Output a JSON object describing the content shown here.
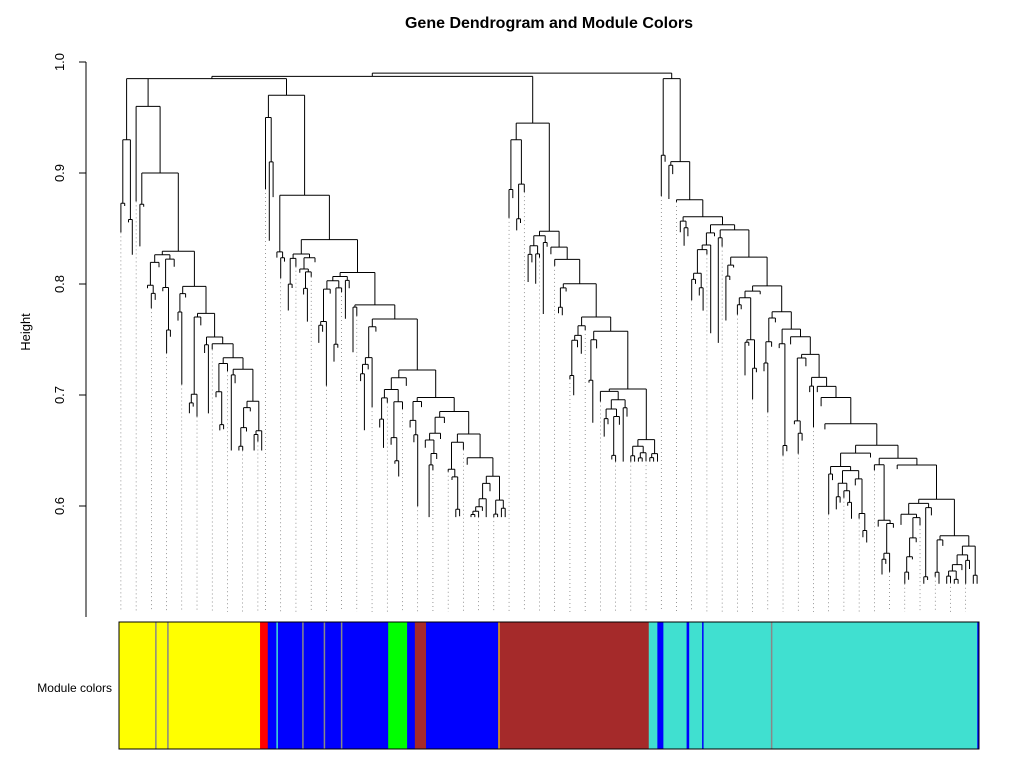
{
  "chart_data": {
    "type": "dendrogram",
    "title": "Gene Dendrogram and Module Colors",
    "ylabel": "Height",
    "ylim": [
      0.5,
      1.0
    ],
    "yticks": [
      0.6,
      0.7,
      0.8,
      0.9,
      1.0
    ],
    "color_row_label": "Module colors",
    "top_merge_height": 0.99,
    "clusters": [
      {
        "name": "yellow",
        "top": 0.99,
        "tip_min": 0.65,
        "n_bins": 38,
        "sub": [
          0.985,
          0.96,
          0.93,
          0.9
        ]
      },
      {
        "name": "blue",
        "top": 0.975,
        "tip_min": 0.59,
        "n_bins": 64,
        "sub": [
          0.97,
          0.95,
          0.91,
          0.88,
          0.84
        ]
      },
      {
        "name": "brown",
        "top": 0.97,
        "tip_min": 0.64,
        "n_bins": 40,
        "sub": [
          0.945,
          0.93,
          0.89,
          0.87
        ]
      },
      {
        "name": "turquoise",
        "top": 0.99,
        "tip_min": 0.53,
        "n_bins": 84,
        "sub": [
          0.985,
          0.905,
          0.88,
          0.82,
          0.78
        ]
      }
    ],
    "module_colors": [
      {
        "color": "#ffff00",
        "fraction": 0.164
      },
      {
        "color": "#ff0000",
        "fraction": 0.009
      },
      {
        "color": "#0000ff",
        "fraction": 0.14
      },
      {
        "color": "#00ff00",
        "fraction": 0.022
      },
      {
        "color": "#0000ff",
        "fraction": 0.009
      },
      {
        "color": "#a52a2a",
        "fraction": 0.013
      },
      {
        "color": "#0000ff",
        "fraction": 0.084
      },
      {
        "color": "#a52a2a",
        "fraction": 0.175
      },
      {
        "color": "#40e0d0",
        "fraction": 0.01
      },
      {
        "color": "#0000ff",
        "fraction": 0.007
      },
      {
        "color": "#40e0d0",
        "fraction": 0.027
      },
      {
        "color": "#0000ff",
        "fraction": 0.003
      },
      {
        "color": "#40e0d0",
        "fraction": 0.335
      },
      {
        "color": "#0000ff",
        "fraction": 0.002
      }
    ],
    "module_stripes": [
      {
        "at": 0.042,
        "color": "#888888"
      },
      {
        "at": 0.056,
        "color": "#888888"
      },
      {
        "at": 0.183,
        "color": "#40e0d0"
      },
      {
        "at": 0.213,
        "color": "#888888"
      },
      {
        "at": 0.238,
        "color": "#888888"
      },
      {
        "at": 0.258,
        "color": "#888888"
      },
      {
        "at": 0.441,
        "color": "#e0a020"
      },
      {
        "at": 0.678,
        "color": "#0000ff"
      },
      {
        "at": 0.758,
        "color": "#888888"
      }
    ],
    "colors": {
      "yellow": "#ffff00",
      "red": "#ff0000",
      "blue": "#0000ff",
      "green": "#00ff00",
      "brown": "#a52a2a",
      "turquoise": "#40e0d0"
    }
  }
}
